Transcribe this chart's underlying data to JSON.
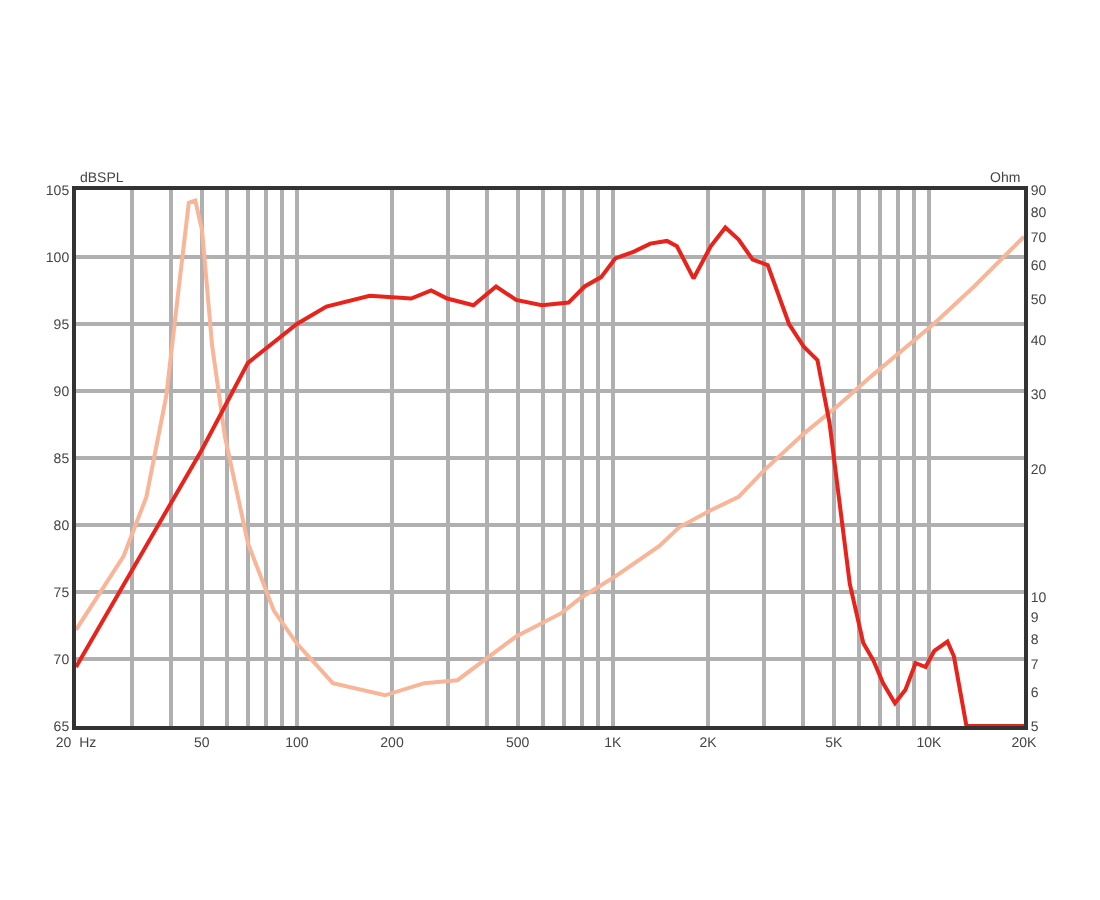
{
  "chart_data": {
    "type": "line",
    "ylabel": "Ohm",
    "y2label": "dBSPL",
    "log": "xy",
    "grid": true,
    "marker": "none",
    "line_style": "solid",
    "xlim": [
      20,
      20000
    ],
    "xticks": [
      {
        "value": 20,
        "label": "20  Hz"
      },
      {
        "value": 30,
        "label": null
      },
      {
        "value": 40,
        "label": null
      },
      50,
      {
        "value": 60,
        "label": null
      },
      {
        "value": 70,
        "label": null
      },
      {
        "value": 80,
        "label": null
      },
      {
        "value": 90,
        "label": null
      },
      100,
      200,
      {
        "value": 300,
        "label": null
      },
      {
        "value": 400,
        "label": null
      },
      500,
      {
        "value": 600,
        "label": null
      },
      {
        "value": 700,
        "label": null
      },
      {
        "value": 800,
        "label": null
      },
      {
        "value": 900,
        "label": null
      },
      {
        "value": 1000,
        "label": "1K"
      },
      {
        "value": 2000,
        "label": "2K"
      },
      {
        "value": 3000,
        "label": null
      },
      {
        "value": 4000,
        "label": null
      },
      {
        "value": 5000,
        "label": "5K"
      },
      {
        "value": 6000,
        "label": null
      },
      {
        "value": 7000,
        "label": null
      },
      {
        "value": 8000,
        "label": null
      },
      {
        "value": 9000,
        "label": null
      },
      {
        "value": 10000,
        "label": "10K"
      },
      {
        "value": 20000,
        "label": "20K"
      }
    ],
    "ylim": [
      5,
      90
    ],
    "yticks": [
      5,
      6,
      7,
      8,
      9,
      10,
      20,
      30,
      40,
      50,
      60,
      70,
      80,
      90
    ],
    "y2lim": [
      65,
      105
    ],
    "y2ticks": [
      65,
      70,
      75,
      80,
      85,
      90,
      95,
      100,
      105
    ],
    "series": [
      {
        "color": "#e8231b",
        "axis": "y2",
        "x": [
          20,
          50,
          70,
          100,
          124,
          170,
          230,
          266,
          299,
          362,
          427,
          494,
          596,
          724,
          814,
          918,
          1018,
          1166,
          1313,
          1483,
          1595,
          1800,
          2040,
          2270,
          2500,
          2770,
          3090,
          3610,
          4020,
          4440,
          4850,
          5220,
          5620,
          6200,
          6670,
          7160,
          7810,
          8430,
          9080,
          9760,
          10400,
          11450,
          12000,
          13150,
          20000
        ],
        "values": [
          69.4,
          85.6,
          92.1,
          95.0,
          96.3,
          97.1,
          96.9,
          97.5,
          96.9,
          96.4,
          97.8,
          96.8,
          96.4,
          96.6,
          97.8,
          98.5,
          99.9,
          100.4,
          101.0,
          101.2,
          100.8,
          98.4,
          100.8,
          102.2,
          101.3,
          99.8,
          99.4,
          95.0,
          93.3,
          92.3,
          87.6,
          81.6,
          75.6,
          71.2,
          69.9,
          68.2,
          66.7,
          67.7,
          69.7,
          69.4,
          70.6,
          71.3,
          70.2,
          65,
          65
        ]
      },
      {
        "color": "#f9b598",
        "x": [
          20,
          28.3,
          33.4,
          38.6,
          42.4,
          45.5,
          47.7,
          50.1,
          53.9,
          59.2,
          70,
          84.6,
          100,
          130,
          190,
          253,
          322,
          389,
          494,
          689,
          794,
          1018,
          1404,
          1620,
          2040,
          2500,
          3020,
          4020,
          5120,
          6550,
          10400,
          13900,
          20000
        ],
        "values": [
          8.4,
          12.5,
          17.2,
          29.6,
          54,
          84,
          85,
          72.5,
          39,
          23.8,
          13.4,
          9.3,
          7.8,
          6.3,
          5.9,
          6.3,
          6.4,
          7.1,
          8.1,
          9.2,
          10.0,
          11.2,
          13.2,
          14.6,
          16,
          17.2,
          19.9,
          24.2,
          28,
          32.9,
          43.8,
          53.5,
          70
        ]
      }
    ]
  }
}
